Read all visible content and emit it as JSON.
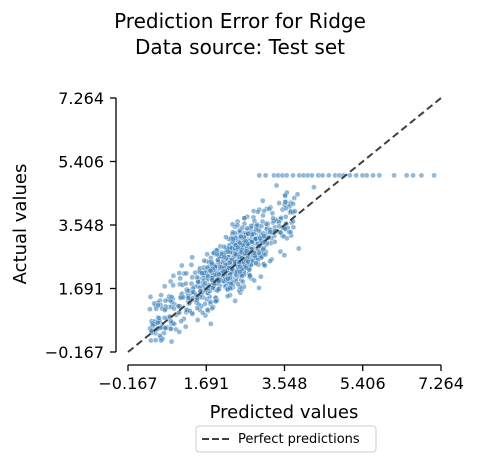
{
  "chart_data": {
    "type": "scatter",
    "title": [
      "Prediction Error for Ridge",
      "Data source: Test set"
    ],
    "xlabel": "Predicted values",
    "ylabel": "Actual values",
    "xlim": [
      -0.167,
      7.264
    ],
    "ylim": [
      -0.167,
      7.264
    ],
    "xticks": [
      "−0.167",
      "1.691",
      "3.548",
      "5.406",
      "7.264"
    ],
    "yticks": [
      "−0.167",
      "1.691",
      "3.548",
      "5.406",
      "7.264"
    ],
    "grid": false,
    "legend_position": "bottom-center",
    "series": [
      {
        "name": "Perfect predictions",
        "kind": "line",
        "style": "dashed",
        "color": "#404040",
        "x": [
          -0.167,
          7.264
        ],
        "y": [
          -0.167,
          7.264
        ]
      }
    ],
    "points_color": "#3b7fb8",
    "points_note_values": {
      "capped_y": 5.0,
      "capped_x": [
        2.95,
        3.1,
        3.3,
        3.4,
        3.5,
        3.6,
        3.75,
        3.9,
        4.0,
        4.1,
        4.2,
        4.35,
        4.45,
        4.6,
        4.75,
        4.85,
        4.95,
        5.1,
        5.25,
        5.4,
        5.5,
        5.65,
        5.8,
        6.15,
        6.45,
        6.6,
        6.8,
        7.1
      ]
    }
  }
}
